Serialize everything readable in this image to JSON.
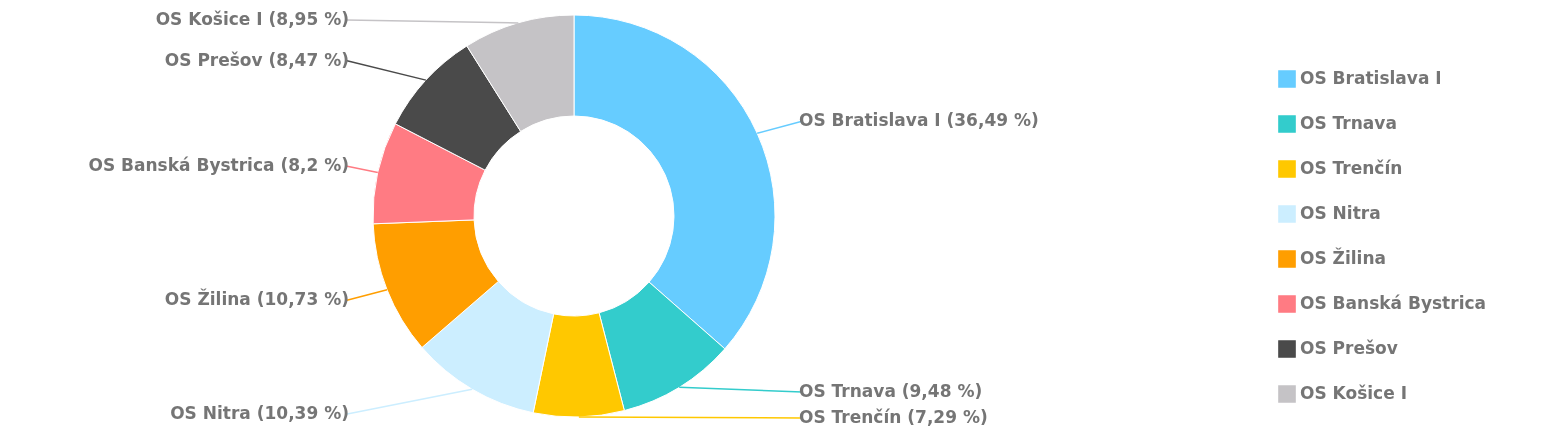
{
  "chart_data": {
    "type": "donut",
    "categories": [
      "OS Bratislava I",
      "OS Trnava",
      "OS Trenčín",
      "OS Nitra",
      "OS Žilina",
      "OS Banská Bystrica",
      "OS Prešov",
      "OS Košice I"
    ],
    "values": [
      36.49,
      9.48,
      7.29,
      10.39,
      10.73,
      8.2,
      8.47,
      8.95
    ],
    "colors": [
      "#66ccff",
      "#33cccc",
      "#ffc800",
      "#cceeff",
      "#ff9e00",
      "#ff7b83",
      "#4a4a4a",
      "#c5c3c6"
    ],
    "value_labels": [
      "OS Bratislava I (36,49 %)",
      "OS Trnava (9,48 %)",
      "OS Trenčín (7,29 %)",
      "OS Nitra (10,39 %)",
      "OS Žilina (10,73 %)",
      "OS Banská Bystrica (8,2 %)",
      "OS Prešov (8,47 %)",
      "OS Košice I (8,95 %)"
    ],
    "legend": "right"
  }
}
